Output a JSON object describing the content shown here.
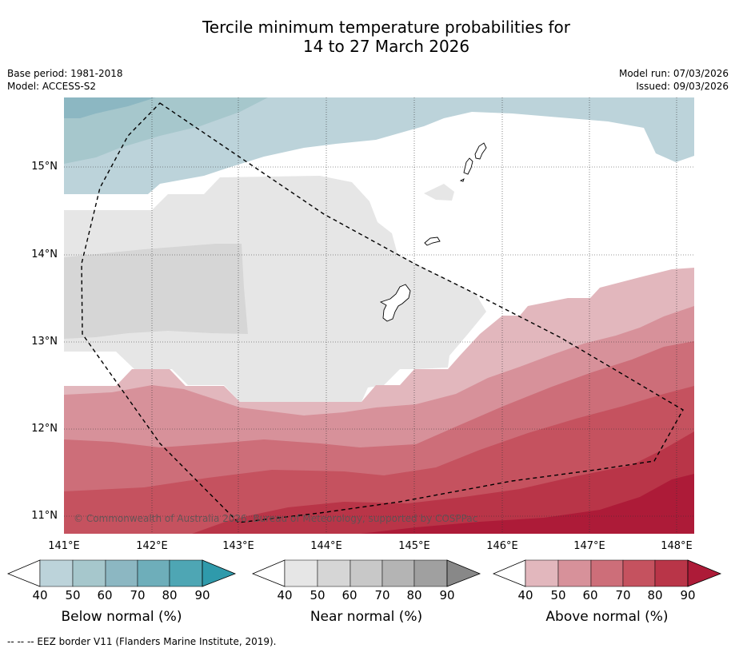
{
  "title": {
    "line1": "Tercile minimum temperature probabilities for",
    "line2": "14 to 27 March 2026"
  },
  "meta": {
    "base_period": "Base period: 1981-2018",
    "model": "Model: ACCESS-S2",
    "model_run": "Model run: 07/03/2026",
    "issued": "Issued: 09/03/2026"
  },
  "axes": {
    "lat_labels": [
      "15°N",
      "14°N",
      "13°N",
      "12°N",
      "11°N"
    ],
    "lon_labels": [
      "141°E",
      "142°E",
      "143°E",
      "144°E",
      "145°E",
      "146°E",
      "147°E",
      "148°E"
    ],
    "lat_range": [
      10.8,
      15.8
    ],
    "lon_range": [
      141.0,
      148.2
    ]
  },
  "copyright": "© Commonwealth of Australia 2026, Bureau of Meteorology, supported by COSPPac",
  "colorbars": [
    {
      "label": "Below normal (%)",
      "ticks": [
        "40",
        "50",
        "60",
        "70",
        "80",
        "90"
      ],
      "colors": [
        "#bcd3da",
        "#a6c7cc",
        "#8cb7c2",
        "#6eaeba",
        "#4ea6b4",
        "#2f9aab"
      ]
    },
    {
      "label": "Near normal (%)",
      "ticks": [
        "40",
        "50",
        "60",
        "70",
        "80",
        "90"
      ],
      "colors": [
        "#e6e6e6",
        "#d6d6d6",
        "#c8c8c8",
        "#b4b4b4",
        "#a0a0a0",
        "#888888"
      ]
    },
    {
      "label": "Above normal (%)",
      "ticks": [
        "40",
        "50",
        "60",
        "70",
        "80",
        "90"
      ],
      "colors": [
        "#e2b7bd",
        "#d7919a",
        "#cd6e79",
        "#c5525f",
        "#b93548",
        "#ad1b38"
      ]
    }
  ],
  "footer": "--  --  -- EEZ border V11 (Flanders Marine Institute, 2019)."
}
